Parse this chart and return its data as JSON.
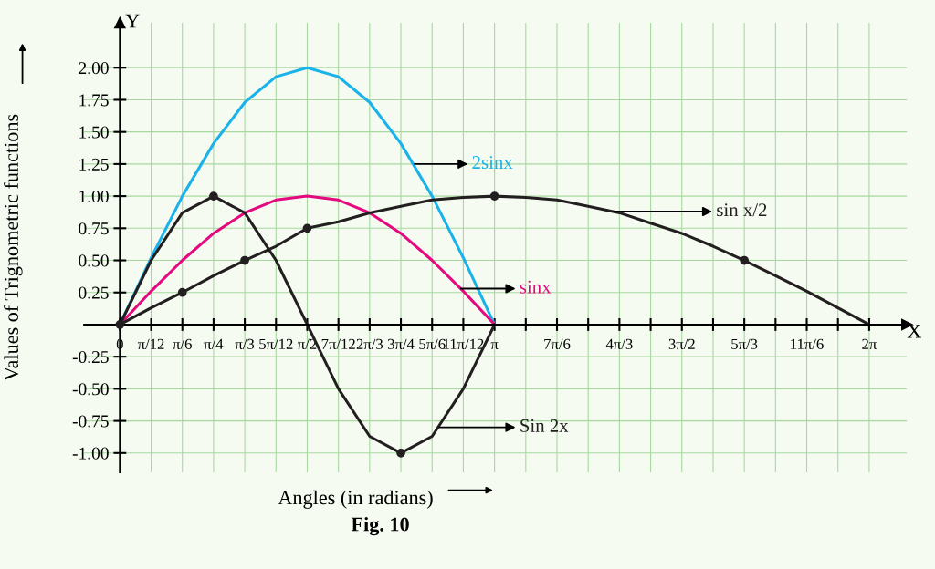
{
  "chart_data": {
    "type": "line",
    "xlabel": "Angles (in radians)",
    "ylabel": "Values of Trignometric functions",
    "annotations": [
      "X",
      "Y",
      "Fig. 10"
    ],
    "series": [
      {
        "name": "2sinx",
        "color": "#1ab2ea",
        "x": [
          0,
          0.2618,
          0.5236,
          0.7854,
          1.0472,
          1.309,
          1.5708,
          1.8326,
          2.0944,
          2.3562,
          2.618,
          2.8798,
          3.1416
        ],
        "values": [
          0,
          0.52,
          1,
          1.41,
          1.73,
          1.93,
          2,
          1.93,
          1.73,
          1.41,
          1,
          0.52,
          0
        ]
      },
      {
        "name": "sinx",
        "color": "#e5097f",
        "x": [
          0,
          0.2618,
          0.5236,
          0.7854,
          1.0472,
          1.309,
          1.5708,
          1.8326,
          2.0944,
          2.3562,
          2.618,
          2.8798,
          3.1416
        ],
        "values": [
          0,
          0.26,
          0.5,
          0.71,
          0.87,
          0.97,
          1,
          0.97,
          0.87,
          0.71,
          0.5,
          0.26,
          0
        ]
      },
      {
        "name": "Sin 2x",
        "color": "#231f20",
        "x": [
          0,
          0.2618,
          0.5236,
          0.7854,
          1.0472,
          1.309,
          1.5708,
          1.8326,
          2.0944,
          2.3562,
          2.618,
          2.8798,
          3.1416
        ],
        "values": [
          0,
          0.5,
          0.87,
          1,
          0.87,
          0.5,
          0,
          -0.5,
          -0.87,
          -1,
          -0.87,
          -0.5,
          0
        ]
      },
      {
        "name": "sin x/2",
        "color": "#231f20",
        "x": [
          0,
          0.2618,
          0.5236,
          0.7854,
          1.0472,
          1.309,
          1.5708,
          1.8326,
          2.0944,
          2.3562,
          2.618,
          2.8798,
          3.1416,
          3.4034,
          3.6652,
          3.927,
          4.1888,
          4.4506,
          4.7124,
          4.9742,
          5.236,
          5.4978,
          5.7596,
          6.0214,
          6.2832
        ],
        "values": [
          0,
          0.13,
          0.25,
          0.38,
          0.5,
          0.61,
          0.75,
          0.8,
          0.87,
          0.92,
          0.97,
          0.99,
          1,
          0.99,
          0.97,
          0.92,
          0.87,
          0.79,
          0.71,
          0.61,
          0.5,
          0.38,
          0.26,
          0.13,
          0
        ]
      },
      {
        "type": "scatter",
        "marker": "circle",
        "color": "#231f20",
        "x": [
          0,
          0.5236,
          0.7854,
          1.0472,
          1.5708,
          2.3562,
          3.1416,
          5.236
        ],
        "values": [
          0,
          0.25,
          1,
          0.5,
          0.75,
          -1,
          1,
          0.5
        ]
      }
    ],
    "xlim": [
      -0.3,
      6.6
    ],
    "ylim": [
      -1.15,
      2.35
    ],
    "xticks": [
      {
        "value": 0,
        "label": "0"
      },
      {
        "value": 0.2618,
        "label": "π/12"
      },
      {
        "value": 0.5236,
        "label": "π/6"
      },
      {
        "value": 0.7854,
        "label": "π/4"
      },
      {
        "value": 1.0472,
        "label": "π/3"
      },
      {
        "value": 1.309,
        "label": "5π/12"
      },
      {
        "value": 1.5708,
        "label": "π/2"
      },
      {
        "value": 1.8326,
        "label": "7π/12"
      },
      {
        "value": 2.0944,
        "label": "2π/3"
      },
      {
        "value": 2.3562,
        "label": "3π/4"
      },
      {
        "value": 2.618,
        "label": "5π/6"
      },
      {
        "value": 2.8798,
        "label": "11π/12"
      },
      {
        "value": 3.1416,
        "label": "π"
      },
      {
        "value": 3.4034,
        "label": null
      },
      {
        "value": 3.6652,
        "label": "7π/6"
      },
      {
        "value": 3.927,
        "label": null
      },
      {
        "value": 4.1888,
        "label": "4π/3"
      },
      {
        "value": 4.4506,
        "label": null
      },
      {
        "value": 4.7124,
        "label": "3π/2"
      },
      {
        "value": 4.9742,
        "label": null
      },
      {
        "value": 5.236,
        "label": "5π/3"
      },
      {
        "value": 5.4978,
        "label": null
      },
      {
        "value": 5.7596,
        "label": "11π/6"
      },
      {
        "value": 6.0214,
        "label": null
      },
      {
        "value": 6.2832,
        "label": "2π"
      }
    ],
    "yticks": [
      {
        "value": -1,
        "label": "-1.00"
      },
      {
        "value": -0.75,
        "label": "-0.75"
      },
      {
        "value": -0.5,
        "label": "-0.50"
      },
      {
        "value": -0.25,
        "label": "-0.25"
      },
      {
        "value": 0.25,
        "label": "0.25"
      },
      {
        "value": 0.5,
        "label": "0.50"
      },
      {
        "value": 0.75,
        "label": "0.75"
      },
      {
        "value": 1,
        "label": "1.00"
      },
      {
        "value": 1.25,
        "label": "1.25"
      },
      {
        "value": 1.5,
        "label": "1.50"
      },
      {
        "value": 1.75,
        "label": "1.75"
      },
      {
        "value": 2,
        "label": "2.00"
      }
    ],
    "grid": true,
    "legend": false,
    "marker": "none",
    "line_style": "solid"
  }
}
